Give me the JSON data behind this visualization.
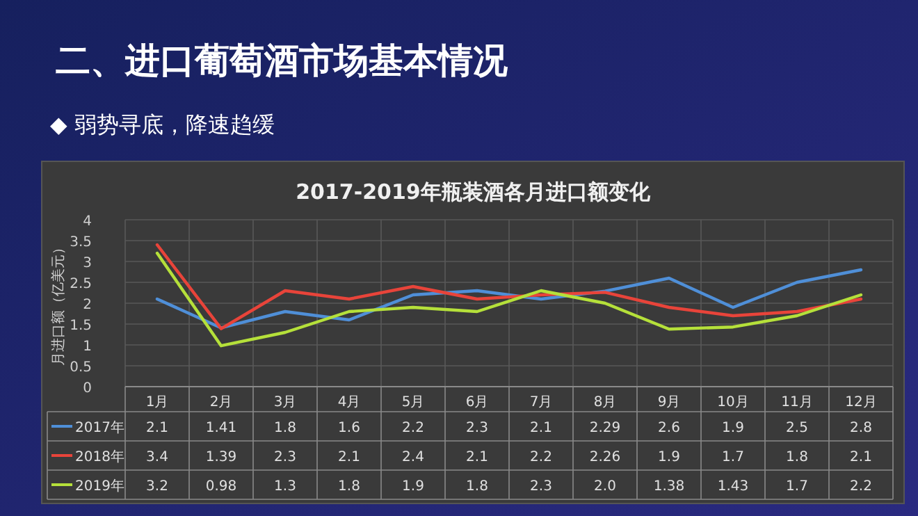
{
  "chart_data": {
    "type": "line",
    "title": "2017-2019年瓶装酒各月进口额变化",
    "ylabel": "月进口额（亿美元）",
    "annotations": [
      "二、进口葡萄酒市场基本情况",
      "◆ 弱势寻底，降速趋缓"
    ],
    "categories": [
      "1月",
      "2月",
      "3月",
      "4月",
      "5月",
      "6月",
      "7月",
      "8月",
      "9月",
      "10月",
      "11月",
      "12月"
    ],
    "ylim": [
      0,
      4
    ],
    "yticks": [
      0,
      0.5,
      1,
      1.5,
      2,
      2.5,
      3,
      3.5,
      4
    ],
    "grid": true,
    "legend": "bottom",
    "series": [
      {
        "name": "2017年",
        "color": "#4f8fd8",
        "values": [
          2.1,
          1.41,
          1.8,
          1.6,
          2.2,
          2.3,
          2.1,
          2.29,
          2.6,
          1.9,
          2.5,
          2.8
        ],
        "value_labels": [
          "2.1",
          "1.41",
          "1.8",
          "1.6",
          "2.2",
          "2.3",
          "2.1",
          "2.29",
          "2.6",
          "1.9",
          "2.5",
          "2.8"
        ]
      },
      {
        "name": "2018年",
        "color": "#e8443a",
        "values": [
          3.4,
          1.39,
          2.3,
          2.1,
          2.4,
          2.1,
          2.2,
          2.26,
          1.9,
          1.7,
          1.8,
          2.1
        ],
        "value_labels": [
          "3.4",
          "1.39",
          "2.3",
          "2.1",
          "2.4",
          "2.1",
          "2.2",
          "2.26",
          "1.9",
          "1.7",
          "1.8",
          "2.1"
        ]
      },
      {
        "name": "2019年",
        "color": "#b5e03a",
        "values": [
          3.2,
          0.98,
          1.3,
          1.8,
          1.9,
          1.8,
          2.3,
          2.0,
          1.38,
          1.43,
          1.7,
          2.2
        ],
        "value_labels": [
          "3.2",
          "0.98",
          "1.3",
          "1.8",
          "1.9",
          "1.8",
          "2.3",
          "2.0",
          "1.38",
          "1.43",
          "1.7",
          "2.2"
        ]
      }
    ]
  }
}
